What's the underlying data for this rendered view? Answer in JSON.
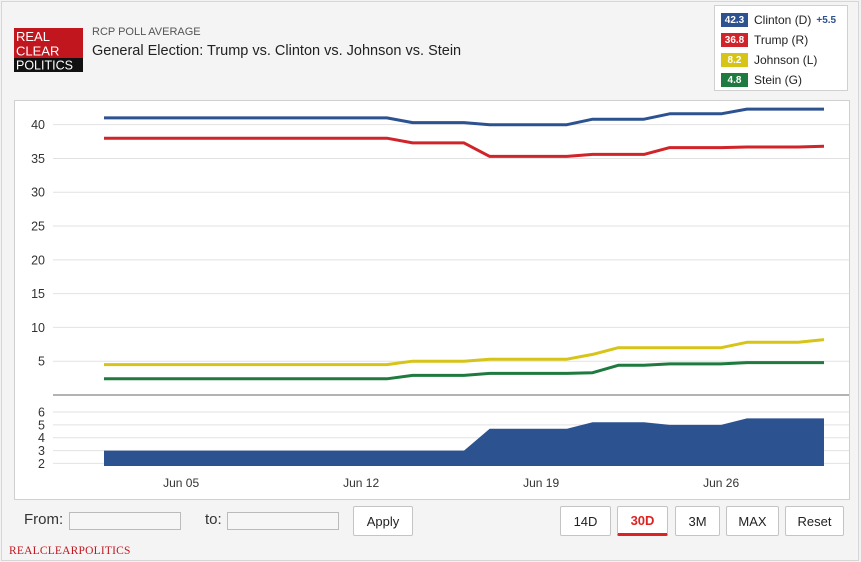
{
  "header": {
    "subtitle": "RCP POLL AVERAGE",
    "title": "General Election: Trump vs. Clinton vs. Johnson vs. Stein",
    "logo_lines": [
      "REAL",
      "CLEAR",
      "POLITICS"
    ]
  },
  "legend": {
    "entries": [
      {
        "value": "42.3",
        "label": "Clinton (D)",
        "spread": "+5.5",
        "color": "#2d5290"
      },
      {
        "value": "36.8",
        "label": "Trump (R)",
        "spread": "",
        "color": "#d0242a"
      },
      {
        "value": "8.2",
        "label": "Johnson (L)",
        "spread": "",
        "color": "#d6c417"
      },
      {
        "value": "4.8",
        "label": "Stein (G)",
        "spread": "",
        "color": "#1e7a3f"
      }
    ]
  },
  "controls": {
    "from_label": "From:",
    "to_label": "to:",
    "from_value": "",
    "to_value": "",
    "apply_label": "Apply",
    "range_buttons": [
      {
        "label": "14D",
        "active": false
      },
      {
        "label": "30D",
        "active": true
      },
      {
        "label": "3M",
        "active": false
      },
      {
        "label": "MAX",
        "active": false
      },
      {
        "label": "Reset",
        "active": false
      }
    ]
  },
  "footer": {
    "brand": "REALCLEARPOLITICS"
  },
  "chart_data": [
    {
      "type": "line",
      "x": [
        0,
        1,
        2,
        3,
        4,
        5,
        6,
        7,
        8,
        9,
        10,
        11,
        12,
        13,
        14,
        15,
        16,
        17,
        18,
        19,
        20,
        21,
        22,
        23,
        24,
        25,
        26,
        27,
        28
      ],
      "x_ticks": [
        {
          "x": 3,
          "label": "Jun 05"
        },
        {
          "x": 10,
          "label": "Jun 12"
        },
        {
          "x": 17,
          "label": "Jun 19"
        },
        {
          "x": 24,
          "label": "Jun 26"
        }
      ],
      "yticks": [
        5,
        10,
        15,
        20,
        25,
        30,
        35,
        40
      ],
      "ylim": [
        0,
        43.5
      ],
      "grid": true,
      "series": [
        {
          "name": "Clinton (D)",
          "color": "#2d5290",
          "values": [
            41.0,
            41.0,
            41.0,
            41.0,
            41.0,
            41.0,
            41.0,
            41.0,
            41.0,
            41.0,
            41.0,
            41.0,
            40.3,
            40.3,
            40.3,
            40.0,
            40.0,
            40.0,
            40.0,
            40.8,
            40.8,
            40.8,
            41.6,
            41.6,
            41.6,
            42.3,
            42.3,
            42.3,
            42.3
          ]
        },
        {
          "name": "Trump (R)",
          "color": "#d0242a",
          "values": [
            38.0,
            38.0,
            38.0,
            38.0,
            38.0,
            38.0,
            38.0,
            38.0,
            38.0,
            38.0,
            38.0,
            38.0,
            37.3,
            37.3,
            37.3,
            35.3,
            35.3,
            35.3,
            35.3,
            35.6,
            35.6,
            35.6,
            36.6,
            36.6,
            36.6,
            36.7,
            36.7,
            36.7,
            36.8
          ]
        },
        {
          "name": "Johnson (L)",
          "color": "#d6c417",
          "values": [
            4.5,
            4.5,
            4.5,
            4.5,
            4.5,
            4.5,
            4.5,
            4.5,
            4.5,
            4.5,
            4.5,
            4.5,
            5.0,
            5.0,
            5.0,
            5.3,
            5.3,
            5.3,
            5.3,
            6.0,
            7.0,
            7.0,
            7.0,
            7.0,
            7.0,
            7.8,
            7.8,
            7.8,
            8.2
          ]
        },
        {
          "name": "Stein (G)",
          "color": "#1e7a3f",
          "values": [
            2.4,
            2.4,
            2.4,
            2.4,
            2.4,
            2.4,
            2.4,
            2.4,
            2.4,
            2.4,
            2.4,
            2.4,
            2.9,
            2.9,
            2.9,
            3.2,
            3.2,
            3.2,
            3.2,
            3.3,
            4.4,
            4.4,
            4.6,
            4.6,
            4.6,
            4.8,
            4.8,
            4.8,
            4.8
          ]
        }
      ]
    },
    {
      "type": "area",
      "x": [
        0,
        1,
        2,
        3,
        4,
        5,
        6,
        7,
        8,
        9,
        10,
        11,
        12,
        13,
        14,
        15,
        16,
        17,
        18,
        19,
        20,
        21,
        22,
        23,
        24,
        25,
        26,
        27,
        28
      ],
      "yticks": [
        2,
        3,
        4,
        5,
        6
      ],
      "ylim": [
        1.8,
        6.7
      ],
      "grid": true,
      "series": [
        {
          "color": "#2d5290",
          "values": [
            3.0,
            3.0,
            3.0,
            3.0,
            3.0,
            3.0,
            3.0,
            3.0,
            3.0,
            3.0,
            3.0,
            3.0,
            3.0,
            3.0,
            3.0,
            4.7,
            4.7,
            4.7,
            4.7,
            5.2,
            5.2,
            5.2,
            5.0,
            5.0,
            5.0,
            5.5,
            5.5,
            5.5,
            5.5
          ]
        }
      ]
    }
  ]
}
